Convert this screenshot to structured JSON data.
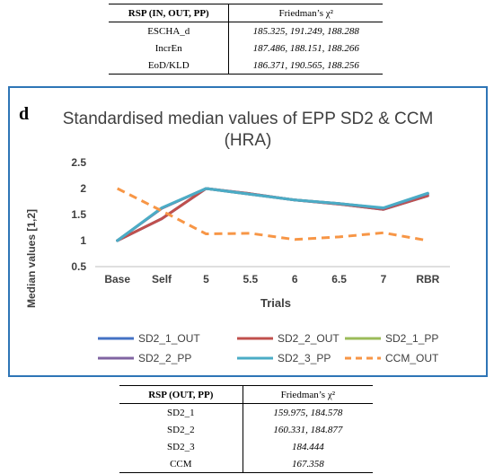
{
  "table_top": {
    "header": [
      "RSP (IN, OUT, PP)",
      "Friedman’s χ²"
    ],
    "rows": [
      [
        "ESCHA_d",
        "185.325, 191.249, 188.288"
      ],
      [
        "IncrEn",
        "187.486, 188.151, 188.266"
      ],
      [
        "EoD/KLD",
        "186.371, 190.565, 188.256"
      ]
    ]
  },
  "panel_letter": "d",
  "chart_data": {
    "type": "line",
    "title_lines": [
      "Standardised median values of EPP SD2 & CCM",
      "(HRA)"
    ],
    "xlabel": "Trials",
    "ylabel": "Median values [1,2]",
    "categories": [
      "Base",
      "Self",
      "5",
      "5.5",
      "6",
      "6.5",
      "7",
      "RBR"
    ],
    "ylim": [
      0.5,
      2.5
    ],
    "yticks": [
      "0.5",
      "1",
      "1.5",
      "2",
      "2.5"
    ],
    "grid": false,
    "legend_position": "bottom",
    "series": [
      {
        "name": "SD2_1_OUT",
        "color": "#4472c4",
        "dash": "solid",
        "values": [
          1.0,
          1.42,
          2.0,
          1.9,
          1.78,
          1.7,
          1.6,
          1.86
        ]
      },
      {
        "name": "SD2_2_OUT",
        "color": "#c0504d",
        "dash": "solid",
        "values": [
          1.0,
          1.42,
          2.0,
          1.9,
          1.78,
          1.7,
          1.6,
          1.86
        ]
      },
      {
        "name": "SD2_1_PP",
        "color": "#9bbb59",
        "dash": "solid",
        "values": [
          1.0,
          1.62,
          2.0,
          1.89,
          1.78,
          1.71,
          1.62,
          1.9
        ]
      },
      {
        "name": "SD2_2_PP",
        "color": "#8064a2",
        "dash": "solid",
        "values": [
          1.0,
          1.62,
          2.0,
          1.89,
          1.78,
          1.71,
          1.62,
          1.9
        ]
      },
      {
        "name": "SD2_3_PP",
        "color": "#4bacc6",
        "dash": "solid",
        "values": [
          1.0,
          1.63,
          2.0,
          1.89,
          1.78,
          1.71,
          1.63,
          1.91
        ]
      },
      {
        "name": "CCM_OUT",
        "color": "#f79646",
        "dash": "dashed",
        "values": [
          2.0,
          1.57,
          1.13,
          1.14,
          1.02,
          1.07,
          1.15,
          1.0
        ]
      }
    ]
  },
  "table_bottom": {
    "header": [
      "RSP (OUT, PP)",
      "Friedman’s χ²"
    ],
    "rows": [
      [
        "SD2_1",
        "159.975, 184.578"
      ],
      [
        "SD2_2",
        "160.331, 184.877"
      ],
      [
        "SD2_3",
        "184.444"
      ],
      [
        "CCM",
        "167.358"
      ]
    ]
  }
}
